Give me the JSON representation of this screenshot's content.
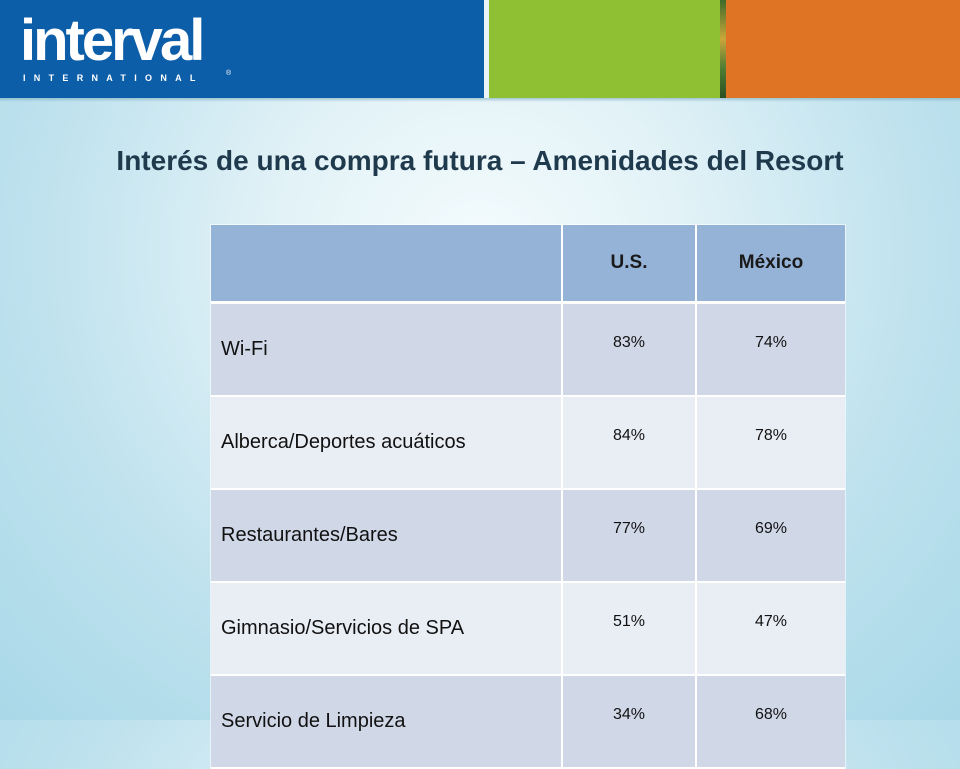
{
  "brand": {
    "logo_word": "interval",
    "logo_sub": "INTERNATIONAL",
    "logo_mark": "®",
    "colors": {
      "blue": "#0d5ea8",
      "green": "#8fbf33",
      "orange": "#de7424"
    }
  },
  "title": "Interés de una compra futura – Amenidades del Resort",
  "table": {
    "headers": [
      "",
      "U.S.",
      "México"
    ],
    "rows": [
      {
        "label": "Wi-Fi",
        "us": "83%",
        "mx": "74%"
      },
      {
        "label": "Alberca/Deportes acuáticos",
        "us": "84%",
        "mx": "78%"
      },
      {
        "label": "Restaurantes/Bares",
        "us": "77%",
        "mx": "69%"
      },
      {
        "label": "Gimnasio/Servicios de SPA",
        "us": "51%",
        "mx": "47%"
      },
      {
        "label": "Servicio de Limpieza",
        "us": "34%",
        "mx": "68%"
      }
    ]
  }
}
